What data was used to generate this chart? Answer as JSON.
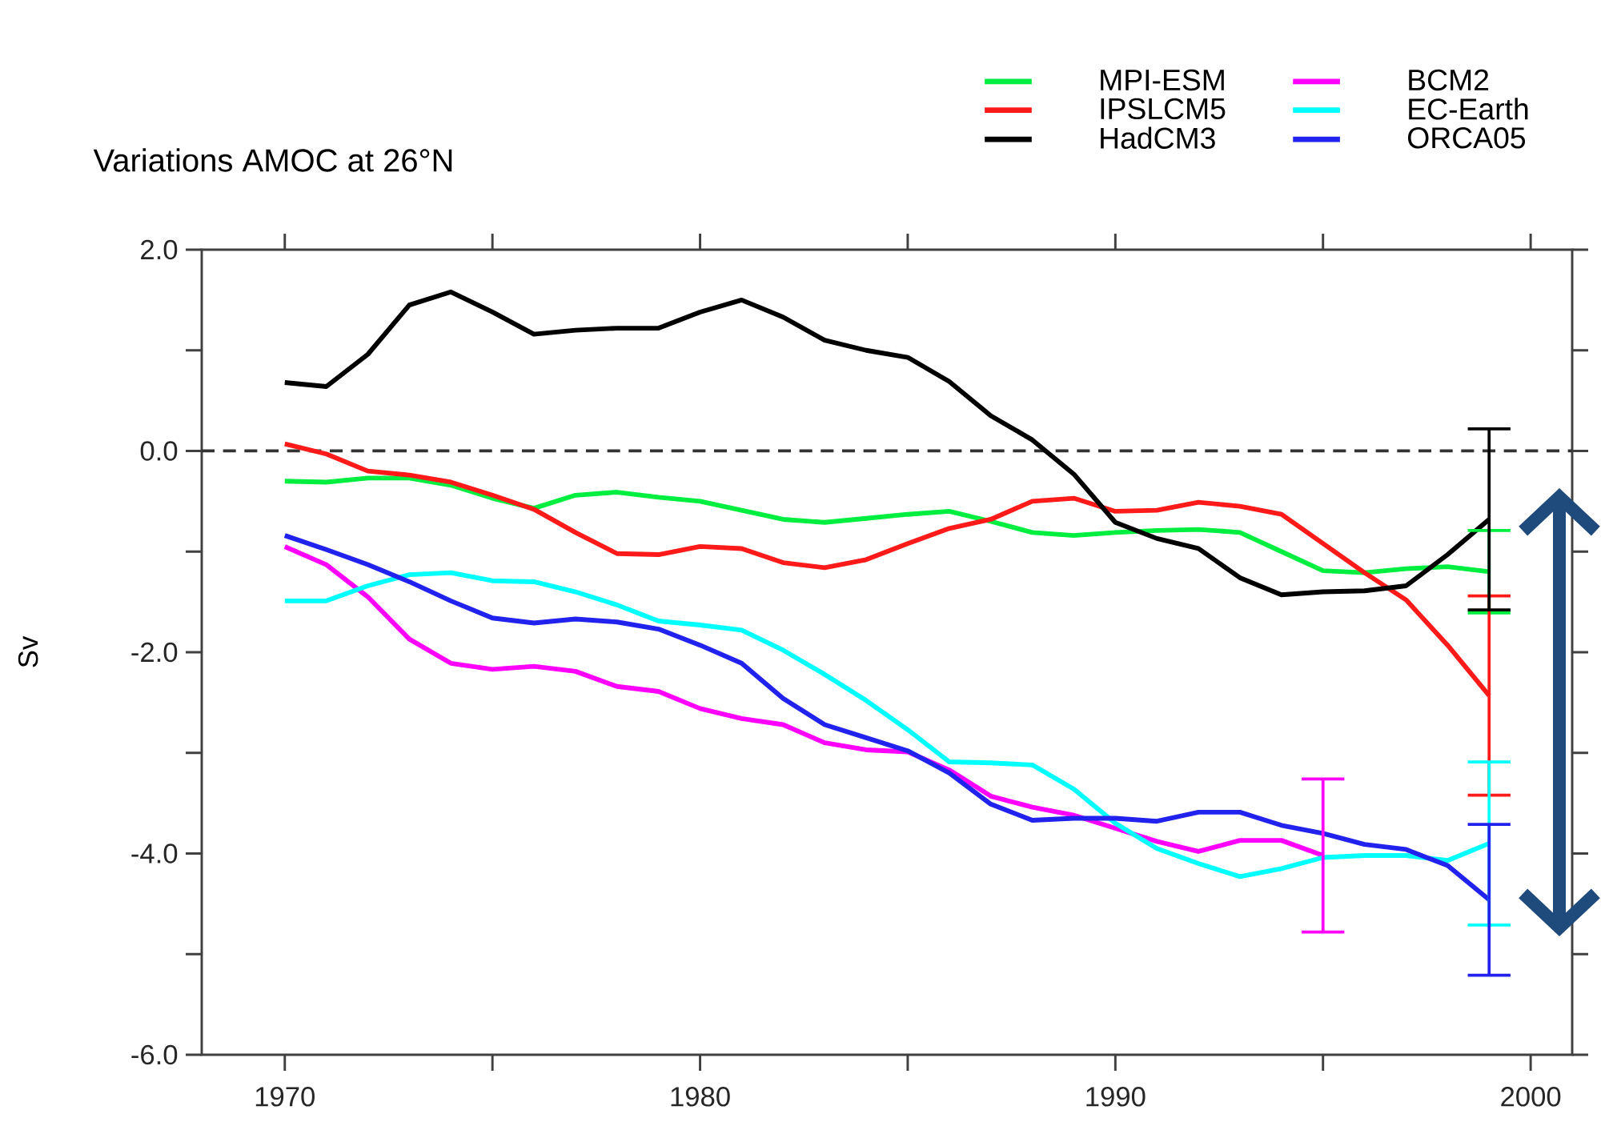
{
  "chart_data": {
    "type": "line",
    "title": "Variations AMOC at 26°N",
    "ylabel": "Sv",
    "x": [
      1970,
      1971,
      1972,
      1973,
      1974,
      1975,
      1976,
      1977,
      1978,
      1979,
      1980,
      1981,
      1982,
      1983,
      1984,
      1985,
      1986,
      1987,
      1988,
      1989,
      1990,
      1991,
      1992,
      1993,
      1994,
      1995,
      1996,
      1997,
      1998,
      1999
    ],
    "xlim": [
      1968,
      2001
    ],
    "xticks": [
      1970,
      {
        "value": 1975,
        "label": null
      },
      1980,
      {
        "value": 1985,
        "label": null
      },
      1990,
      {
        "value": 1995,
        "label": null
      },
      2000
    ],
    "ylim": [
      -6,
      2
    ],
    "yticks": [
      {
        "value": -6,
        "label": "-6.0"
      },
      {
        "value": -5,
        "label": null
      },
      {
        "value": -4,
        "label": "-4.0"
      },
      {
        "value": -3,
        "label": null
      },
      {
        "value": -2,
        "label": "-2.0"
      },
      {
        "value": -1,
        "label": null
      },
      {
        "value": 0,
        "label": "0.0"
      },
      {
        "value": 1,
        "label": null
      },
      {
        "value": 2,
        "label": "2.0"
      }
    ],
    "legend": "top right",
    "ref_lines": [
      {
        "axis": "y",
        "value": 0,
        "line_style": "dashed",
        "color": "#333333"
      }
    ],
    "series": [
      {
        "name": "MPI-ESM",
        "color": "#00ee40",
        "values": [
          -0.3,
          -0.31,
          -0.27,
          -0.27,
          -0.34,
          -0.47,
          -0.57,
          -0.44,
          -0.41,
          -0.46,
          -0.5,
          -0.59,
          -0.68,
          -0.71,
          -0.67,
          -0.63,
          -0.6,
          -0.7,
          -0.81,
          -0.84,
          -0.81,
          -0.79,
          -0.78,
          -0.81,
          -1.0,
          -1.19,
          -1.21,
          -1.17,
          -1.15,
          -1.2
        ],
        "errors": [
          null,
          null,
          null,
          null,
          null,
          null,
          null,
          null,
          null,
          null,
          null,
          null,
          null,
          null,
          null,
          null,
          null,
          null,
          null,
          null,
          null,
          null,
          null,
          null,
          null,
          null,
          null,
          null,
          null,
          0.41
        ]
      },
      {
        "name": "IPSLCM5",
        "color": "#ff1a1a",
        "values": [
          0.07,
          -0.03,
          -0.2,
          -0.24,
          -0.31,
          -0.44,
          -0.58,
          -0.81,
          -1.02,
          -1.03,
          -0.95,
          -0.97,
          -1.11,
          -1.16,
          -1.08,
          -0.92,
          -0.77,
          -0.68,
          -0.5,
          -0.47,
          -0.6,
          -0.59,
          -0.51,
          -0.55,
          -0.63,
          -0.92,
          -1.21,
          -1.48,
          -1.93,
          -2.43
        ],
        "errors": [
          null,
          null,
          null,
          null,
          null,
          null,
          null,
          null,
          null,
          null,
          null,
          null,
          null,
          null,
          null,
          null,
          null,
          null,
          null,
          null,
          null,
          null,
          null,
          null,
          null,
          null,
          null,
          null,
          null,
          0.99
        ]
      },
      {
        "name": "HadCM3",
        "color": "#000000",
        "values": [
          0.68,
          0.64,
          0.96,
          1.45,
          1.58,
          1.38,
          1.16,
          1.2,
          1.22,
          1.22,
          1.38,
          1.5,
          1.33,
          1.1,
          1.0,
          0.93,
          0.69,
          0.35,
          0.11,
          -0.23,
          -0.71,
          -0.87,
          -0.97,
          -1.26,
          -1.43,
          -1.4,
          -1.39,
          -1.34,
          -1.03,
          -0.68
        ],
        "errors": [
          null,
          null,
          null,
          null,
          null,
          null,
          null,
          null,
          null,
          null,
          null,
          null,
          null,
          null,
          null,
          null,
          null,
          null,
          null,
          null,
          null,
          null,
          null,
          null,
          null,
          null,
          null,
          null,
          null,
          0.9
        ]
      },
      {
        "name": "BCM2",
        "color": "#ff00ff",
        "x": [
          1970,
          1971,
          1972,
          1973,
          1974,
          1975,
          1976,
          1977,
          1978,
          1979,
          1980,
          1981,
          1982,
          1983,
          1984,
          1985,
          1986,
          1987,
          1988,
          1989,
          1990,
          1991,
          1992,
          1993,
          1994,
          1995
        ],
        "values": [
          -0.95,
          -1.13,
          -1.45,
          -1.87,
          -2.11,
          -2.17,
          -2.14,
          -2.19,
          -2.34,
          -2.39,
          -2.56,
          -2.66,
          -2.72,
          -2.9,
          -2.97,
          -2.99,
          -3.17,
          -3.43,
          -3.54,
          -3.62,
          -3.75,
          -3.88,
          -3.98,
          -3.87,
          -3.87,
          -4.02
        ],
        "errors": [
          null,
          null,
          null,
          null,
          null,
          null,
          null,
          null,
          null,
          null,
          null,
          null,
          null,
          null,
          null,
          null,
          null,
          null,
          null,
          null,
          null,
          null,
          null,
          null,
          null,
          0.76
        ]
      },
      {
        "name": "EC-Earth",
        "color": "#00ffff",
        "values": [
          -1.49,
          -1.49,
          -1.34,
          -1.23,
          -1.21,
          -1.29,
          -1.3,
          -1.4,
          -1.53,
          -1.69,
          -1.73,
          -1.78,
          -1.98,
          -2.22,
          -2.48,
          -2.77,
          -3.09,
          -3.1,
          -3.12,
          -3.36,
          -3.7,
          -3.95,
          -4.1,
          -4.23,
          -4.15,
          -4.04,
          -4.02,
          -4.02,
          -4.07,
          -3.9
        ],
        "errors": [
          null,
          null,
          null,
          null,
          null,
          null,
          null,
          null,
          null,
          null,
          null,
          null,
          null,
          null,
          null,
          null,
          null,
          null,
          null,
          null,
          null,
          null,
          null,
          null,
          null,
          null,
          null,
          null,
          null,
          0.81
        ]
      },
      {
        "name": "ORCA05",
        "color": "#2222ee",
        "values": [
          -0.84,
          -0.98,
          -1.13,
          -1.3,
          -1.49,
          -1.66,
          -1.71,
          -1.67,
          -1.7,
          -1.77,
          -1.93,
          -2.11,
          -2.46,
          -2.72,
          -2.85,
          -2.98,
          -3.2,
          -3.51,
          -3.67,
          -3.65,
          -3.65,
          -3.68,
          -3.59,
          -3.59,
          -3.72,
          -3.8,
          -3.91,
          -3.96,
          -4.12,
          -4.46
        ],
        "errors": [
          null,
          null,
          null,
          null,
          null,
          null,
          null,
          null,
          null,
          null,
          null,
          null,
          null,
          null,
          null,
          null,
          null,
          null,
          null,
          null,
          null,
          null,
          null,
          null,
          null,
          null,
          null,
          null,
          null,
          0.75
        ]
      }
    ]
  }
}
